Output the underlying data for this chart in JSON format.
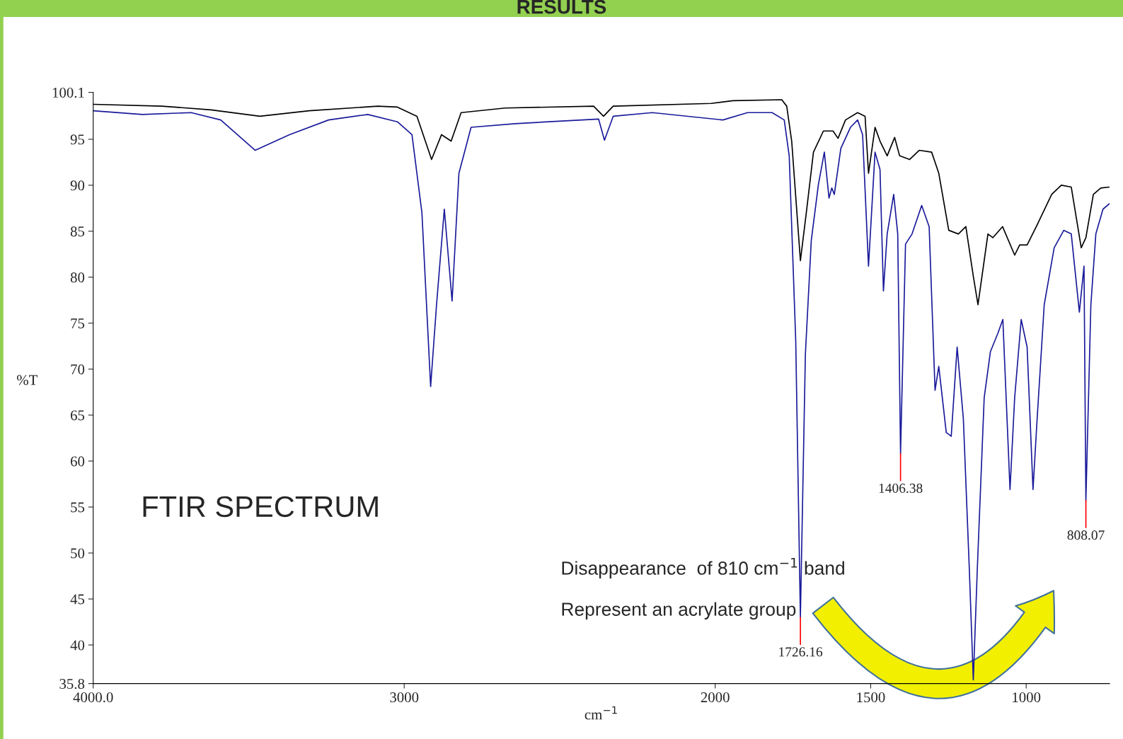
{
  "chart_data": {
    "type": "line",
    "title": "RESULTS",
    "xlabel": "cm$^{−1}$",
    "ylabel": "%T",
    "xlim": [
      4000,
      732
    ],
    "xticks": [
      {
        "value": 4000,
        "label": "4000.0"
      },
      3000,
      2000,
      1500,
      1000
    ],
    "ylim": [
      35.8,
      100.1
    ],
    "yticks": [
      35.8,
      40,
      45,
      50,
      55,
      60,
      65,
      70,
      75,
      80,
      85,
      90,
      95,
      100.1
    ],
    "grid": false,
    "legend": false,
    "marker": "none",
    "line_style": "solid",
    "series": [
      {
        "color": "#000000",
        "x": [
          4000,
          3779,
          3621,
          3464,
          3306,
          3085,
          3022,
          2959,
          2912,
          2880,
          2849,
          2817,
          2675,
          2391,
          2359,
          2328,
          2013,
          1943,
          1786,
          1770,
          1754,
          1726,
          1707,
          1684,
          1652,
          1621,
          1605,
          1581,
          1542,
          1518,
          1507,
          1486,
          1470,
          1447,
          1423,
          1407,
          1375,
          1344,
          1304,
          1281,
          1249,
          1218,
          1194,
          1170,
          1155,
          1123,
          1107,
          1076,
          1037,
          1021,
          997,
          966,
          918,
          887,
          855,
          823,
          808,
          784,
          760,
          732
        ],
        "values": [
          98.8,
          98.6,
          98.2,
          97.5,
          98.1,
          98.6,
          98.5,
          97.5,
          92.8,
          95.5,
          94.8,
          97.9,
          98.4,
          98.6,
          97.5,
          98.6,
          98.9,
          99.2,
          99.3,
          98.6,
          94.8,
          81.8,
          87.0,
          93.6,
          95.9,
          95.9,
          95.1,
          97.1,
          97.9,
          97.5,
          91.3,
          96.3,
          94.8,
          93.2,
          95.2,
          93.2,
          92.8,
          93.8,
          93.6,
          91.3,
          85.1,
          84.7,
          85.5,
          80.1,
          77.0,
          84.7,
          84.3,
          85.5,
          82.4,
          83.5,
          83.5,
          85.6,
          89.0,
          90.0,
          89.8,
          83.2,
          84.3,
          89.0,
          89.7,
          89.8
        ]
      },
      {
        "color": "#1a1a9a",
        "x": [
          4000,
          3842,
          3685,
          3590,
          3479,
          3369,
          3243,
          3117,
          3022,
          2975,
          2943,
          2915,
          2896,
          2871,
          2846,
          2824,
          2785,
          2643,
          2375,
          2356,
          2328,
          2202,
          1975,
          1896,
          1817,
          1778,
          1762,
          1741,
          1726,
          1710,
          1691,
          1668,
          1649,
          1634,
          1625,
          1617,
          1596,
          1565,
          1542,
          1526,
          1507,
          1486,
          1470,
          1459,
          1447,
          1426,
          1413,
          1404,
          1388,
          1367,
          1336,
          1312,
          1293,
          1281,
          1257,
          1241,
          1222,
          1202,
          1183,
          1170,
          1157,
          1135,
          1115,
          1091,
          1075,
          1052,
          1037,
          1016,
          997,
          978,
          966,
          942,
          910,
          879,
          855,
          829,
          814,
          808,
          792,
          776,
          753,
          732
        ],
        "values": [
          98.1,
          97.7,
          97.9,
          97.1,
          93.8,
          95.5,
          97.1,
          97.7,
          96.9,
          95.5,
          87.0,
          68.1,
          77.0,
          87.4,
          77.4,
          91.3,
          96.3,
          96.7,
          97.2,
          94.9,
          97.5,
          97.9,
          97.1,
          97.9,
          97.9,
          97.1,
          93.2,
          73.1,
          43.0,
          71.6,
          84.0,
          90.1,
          93.6,
          88.6,
          89.7,
          89.0,
          94.0,
          96.3,
          97.1,
          95.5,
          81.2,
          93.6,
          91.7,
          78.5,
          84.7,
          89.0,
          84.7,
          60.8,
          83.6,
          84.7,
          87.8,
          85.5,
          67.7,
          70.3,
          63.1,
          62.7,
          72.4,
          64.6,
          48.4,
          36.2,
          48.4,
          66.9,
          71.9,
          73.9,
          75.4,
          56.9,
          66.9,
          75.4,
          72.4,
          56.9,
          63.9,
          77.0,
          83.2,
          85.1,
          84.7,
          76.2,
          81.2,
          55.7,
          77.0,
          84.7,
          87.4,
          88.0
        ]
      }
    ],
    "annotations": [
      "FTIR SPECTRUM",
      "Disappearance  of 810 cm$^{−1}$ band",
      "Represent an acrylate group",
      {
        "text": "1726.16",
        "x": 1726,
        "y": 43.0
      },
      {
        "text": "1406.38",
        "x": 1404,
        "y": 60.8
      },
      {
        "text": "808.07",
        "x": 808,
        "y": 55.7
      }
    ]
  }
}
